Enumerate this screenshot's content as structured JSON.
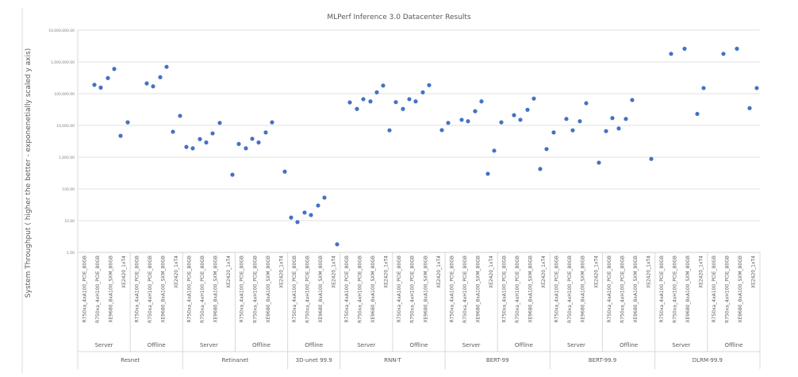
{
  "chart_data": {
    "type": "scatter",
    "title": "MLPerf Inference 3.0 Datacenter Results",
    "xlabel": "",
    "ylabel": "System Throughput ( higher the better - exponenetially scaled y axis)",
    "yscale": "log",
    "ylim": [
      1,
      10000000
    ],
    "y_ticks": [
      "1.00",
      "10.00",
      "100.00",
      "1,000.00",
      "10,000.00",
      "100,000.00",
      "1,000,000.00",
      "10,000,000.00"
    ],
    "grid": true,
    "legend": null,
    "systems": [
      "R750xa_4xA100_PCIE_80GB",
      "R750xa_4xH100_PCIE_80GB",
      "XE9680_8xA100_SXM_80GB",
      "XE2420_1xT4"
    ],
    "groups": [
      {
        "benchmark": "Resnet",
        "scenarios": [
          "Server",
          "Offline"
        ]
      },
      {
        "benchmark": "Retinanet",
        "scenarios": [
          "Server",
          "Offline"
        ]
      },
      {
        "benchmark": "3D-unet 99.9",
        "scenarios": [
          "Offline"
        ]
      },
      {
        "benchmark": "RNN-T",
        "scenarios": [
          "Server",
          "Offline"
        ]
      },
      {
        "benchmark": "BERT-99",
        "scenarios": [
          "Server",
          "Offline"
        ]
      },
      {
        "benchmark": "BERT-99.9",
        "scenarios": [
          "Server",
          "Offline"
        ]
      },
      {
        "benchmark": "DLRM-99.9",
        "scenarios": [
          "Server",
          "Offline"
        ]
      }
    ],
    "series": [
      {
        "name": "System Throughput",
        "color": "#4472c4",
        "points": [
          {
            "x": 119,
            "y": 190000
          },
          {
            "x": 127,
            "y": 155000
          },
          {
            "x": 136,
            "y": 310000
          },
          {
            "x": 144,
            "y": 600000
          },
          {
            "x": 152,
            "y": 4700
          },
          {
            "x": 161,
            "y": 12500
          },
          {
            "x": 185,
            "y": 210000
          },
          {
            "x": 193,
            "y": 170000
          },
          {
            "x": 202,
            "y": 330000
          },
          {
            "x": 210,
            "y": 700000
          },
          {
            "x": 218,
            "y": 6300
          },
          {
            "x": 227,
            "y": 20000
          },
          {
            "x": 235,
            "y": 2100
          },
          {
            "x": 243,
            "y": 1900
          },
          {
            "x": 252,
            "y": 3700
          },
          {
            "x": 260,
            "y": 2900
          },
          {
            "x": 268,
            "y": 5600
          },
          {
            "x": 277,
            "y": 12000
          },
          {
            "x": 293,
            "y": 280
          },
          {
            "x": 301,
            "y": 2600
          },
          {
            "x": 310,
            "y": 1900
          },
          {
            "x": 318,
            "y": 3800
          },
          {
            "x": 326,
            "y": 2900
          },
          {
            "x": 335,
            "y": 6000
          },
          {
            "x": 343,
            "y": 12500
          },
          {
            "x": 359,
            "y": 350
          },
          {
            "x": 367,
            "y": 12.5
          },
          {
            "x": 375,
            "y": 9
          },
          {
            "x": 384,
            "y": 18
          },
          {
            "x": 392,
            "y": 15
          },
          {
            "x": 401,
            "y": 30
          },
          {
            "x": 409,
            "y": 53
          },
          {
            "x": 425,
            "y": 1.8
          },
          {
            "x": 441,
            "y": 53000
          },
          {
            "x": 450,
            "y": 33000
          },
          {
            "x": 458,
            "y": 67000
          },
          {
            "x": 467,
            "y": 57000
          },
          {
            "x": 475,
            "y": 110000
          },
          {
            "x": 483,
            "y": 180000
          },
          {
            "x": 491,
            "y": 7000
          },
          {
            "x": 499,
            "y": 54000
          },
          {
            "x": 508,
            "y": 33000
          },
          {
            "x": 516,
            "y": 67000
          },
          {
            "x": 524,
            "y": 57000
          },
          {
            "x": 533,
            "y": 110000
          },
          {
            "x": 541,
            "y": 185000
          },
          {
            "x": 557,
            "y": 7100
          },
          {
            "x": 565,
            "y": 12000
          },
          {
            "x": 582,
            "y": 15000
          },
          {
            "x": 590,
            "y": 13500
          },
          {
            "x": 599,
            "y": 28000
          },
          {
            "x": 607,
            "y": 57000
          },
          {
            "x": 615,
            "y": 300
          },
          {
            "x": 623,
            "y": 1600
          },
          {
            "x": 632,
            "y": 12500
          },
          {
            "x": 648,
            "y": 21000
          },
          {
            "x": 656,
            "y": 15000
          },
          {
            "x": 665,
            "y": 31000
          },
          {
            "x": 673,
            "y": 70000
          },
          {
            "x": 681,
            "y": 425
          },
          {
            "x": 689,
            "y": 1800
          },
          {
            "x": 698,
            "y": 6000
          },
          {
            "x": 714,
            "y": 16000
          },
          {
            "x": 722,
            "y": 7000
          },
          {
            "x": 731,
            "y": 13500
          },
          {
            "x": 739,
            "y": 50000
          },
          {
            "x": 755,
            "y": 670
          },
          {
            "x": 764,
            "y": 6600
          },
          {
            "x": 772,
            "y": 17000
          },
          {
            "x": 780,
            "y": 8000
          },
          {
            "x": 789,
            "y": 16000
          },
          {
            "x": 797,
            "y": 63000
          },
          {
            "x": 821,
            "y": 880
          },
          {
            "x": 846,
            "y": 1800000
          },
          {
            "x": 863,
            "y": 2600000
          },
          {
            "x": 879,
            "y": 23000
          },
          {
            "x": 887,
            "y": 150000
          },
          {
            "x": 912,
            "y": 1800000
          },
          {
            "x": 929,
            "y": 2600000
          },
          {
            "x": 945,
            "y": 35000
          },
          {
            "x": 954,
            "y": 150000
          }
        ]
      }
    ]
  }
}
